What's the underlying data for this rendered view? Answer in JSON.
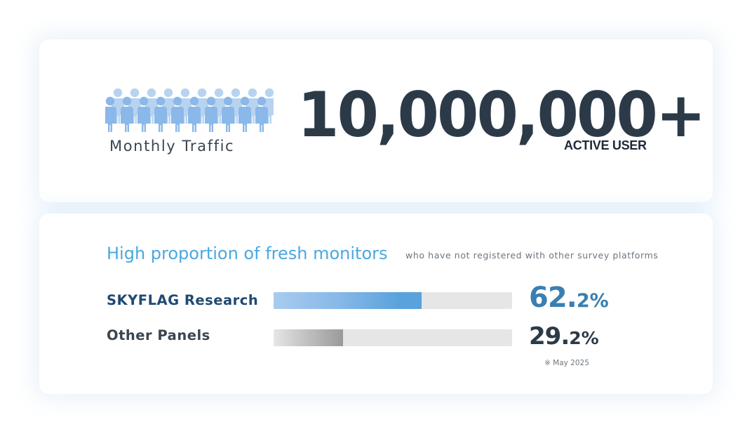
{
  "traffic": {
    "crowd_icon": "people-crowd-icon",
    "label": "Monthly Traffic",
    "number": "10,000,000+",
    "suffix": "ACTIVE USER"
  },
  "fresh_monitors": {
    "heading": "High proportion of fresh monitors",
    "subheading": "who have not registered with other survey platforms",
    "rows": [
      {
        "label": "SKYFLAG Research",
        "percent": 62.2,
        "percent_whole": "62.",
        "percent_decimal": "2%",
        "color": "#5aa2dc"
      },
      {
        "label": "Other Panels",
        "percent": 29.2,
        "percent_whole": "29.",
        "percent_decimal": "2%",
        "color": "#9a9a9a"
      }
    ],
    "note": "※ May 2025"
  },
  "colors": {
    "heading": "#4aa8e0",
    "number": "#2c3a48",
    "skyflag_percent": "#3a7fb0",
    "bar_track": "#e6e6e6"
  }
}
